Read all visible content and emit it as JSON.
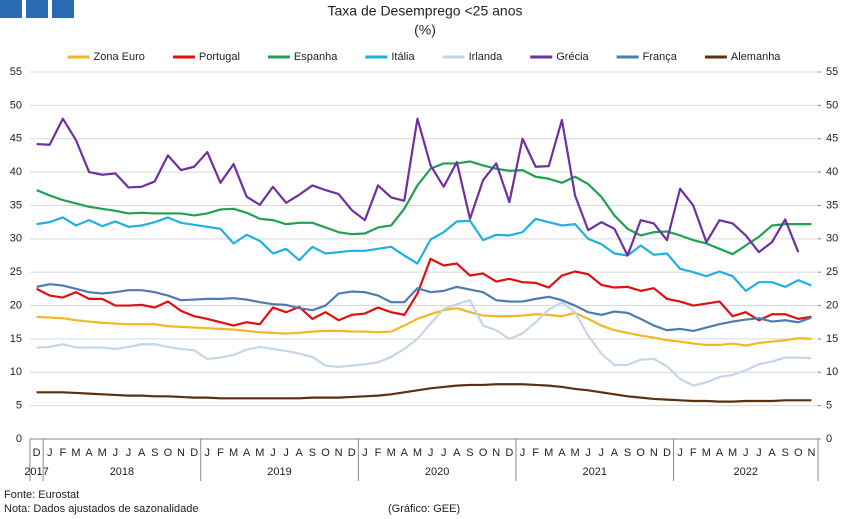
{
  "chart_data": {
    "type": "line",
    "title": "Taxa de Desemprego <25 anos",
    "subtitle": "(%)",
    "source": "Fonte: Eurostat",
    "note": "Nota: Dados ajustados de sazonalidade",
    "credit": "(Gráfico: GEE)",
    "categories": [
      "D",
      "J",
      "F",
      "M",
      "A",
      "M",
      "J",
      "J",
      "A",
      "S",
      "O",
      "N",
      "D",
      "J",
      "F",
      "M",
      "A",
      "M",
      "J",
      "J",
      "A",
      "S",
      "O",
      "N",
      "D",
      "J",
      "F",
      "M",
      "A",
      "M",
      "J",
      "J",
      "A",
      "S",
      "O",
      "N",
      "D",
      "J",
      "F",
      "M",
      "A",
      "M",
      "J",
      "J",
      "A",
      "S",
      "O",
      "N",
      "D",
      "J",
      "F",
      "M",
      "A",
      "M",
      "J",
      "J",
      "A",
      "S",
      "O",
      "N"
    ],
    "years": [
      "2017",
      "2018",
      "2019",
      "2020",
      "2021",
      "2022"
    ],
    "ylim": [
      0,
      55
    ],
    "yticks": [
      0,
      5,
      10,
      15,
      20,
      25,
      30,
      35,
      40,
      45,
      50,
      55
    ],
    "y2lim": [
      0,
      55
    ],
    "y2ticks": [
      0,
      5,
      10,
      15,
      20,
      25,
      30,
      35,
      40,
      45,
      50,
      55
    ],
    "grid": true,
    "legend": "top",
    "series": [
      {
        "name": "Zona Euro",
        "color": "#f2b821",
        "values": [
          18.3,
          18.2,
          18.1,
          17.8,
          17.6,
          17.4,
          17.3,
          17.2,
          17.2,
          17.2,
          16.9,
          16.8,
          16.7,
          16.6,
          16.5,
          16.4,
          16.2,
          16.0,
          15.9,
          15.8,
          15.9,
          16.1,
          16.2,
          16.2,
          16.1,
          16.1,
          16.0,
          16.1,
          17.0,
          18.0,
          18.7,
          19.3,
          19.6,
          19.0,
          18.5,
          18.4,
          18.4,
          18.5,
          18.7,
          18.6,
          18.4,
          18.9,
          18.0,
          17.0,
          16.3,
          15.9,
          15.5,
          15.2,
          14.8,
          14.6,
          14.3,
          14.1,
          14.1,
          14.3,
          14.0,
          14.4,
          14.6,
          14.8,
          15.1,
          15.0
        ]
      },
      {
        "name": "Portugal",
        "color": "#e01010",
        "values": [
          22.5,
          21.5,
          21.2,
          22.0,
          21.0,
          21.0,
          20.0,
          20.0,
          20.1,
          19.7,
          20.6,
          19.2,
          18.4,
          18.0,
          17.5,
          17.0,
          17.5,
          17.2,
          19.7,
          19.0,
          19.8,
          18.0,
          19.0,
          17.8,
          18.6,
          18.8,
          19.7,
          19.0,
          18.6,
          21.8,
          27.0,
          26.0,
          26.3,
          24.5,
          24.8,
          23.6,
          24.0,
          23.5,
          23.4,
          22.7,
          24.5,
          25.1,
          24.7,
          23.1,
          22.7,
          22.8,
          22.2,
          22.6,
          21.0,
          20.6,
          20.0,
          20.3,
          20.6,
          18.4,
          19.0,
          17.8,
          18.7,
          18.7,
          18.0,
          18.3
        ]
      },
      {
        "name": "Espanha",
        "color": "#20a050",
        "values": [
          37.3,
          36.5,
          35.8,
          35.3,
          34.8,
          34.5,
          34.2,
          33.8,
          33.9,
          33.8,
          33.8,
          33.8,
          33.5,
          33.8,
          34.4,
          34.5,
          33.9,
          33.0,
          32.8,
          32.2,
          32.4,
          32.4,
          31.7,
          31.0,
          30.7,
          30.8,
          31.7,
          32.0,
          34.5,
          38.0,
          40.5,
          41.3,
          41.3,
          41.6,
          41.0,
          40.5,
          40.2,
          40.3,
          39.3,
          39.0,
          38.4,
          39.3,
          38.2,
          36.3,
          33.5,
          31.5,
          30.5,
          31.0,
          31.1,
          30.5,
          29.8,
          29.3,
          28.5,
          27.7,
          29.0,
          30.3,
          32.0,
          32.2,
          32.2,
          32.2
        ]
      },
      {
        "name": "Itália",
        "color": "#20b0e0",
        "values": [
          32.2,
          32.5,
          33.2,
          32.0,
          32.8,
          31.9,
          32.6,
          31.8,
          32.0,
          32.5,
          33.2,
          32.4,
          32.1,
          31.8,
          31.5,
          29.3,
          30.6,
          29.7,
          27.8,
          28.5,
          26.8,
          28.8,
          27.8,
          28.0,
          28.2,
          28.2,
          28.5,
          28.8,
          27.5,
          26.3,
          29.9,
          31.0,
          32.6,
          32.7,
          29.8,
          30.6,
          30.5,
          31.0,
          33.0,
          32.5,
          32.0,
          32.2,
          30.0,
          29.2,
          27.8,
          27.5,
          29.0,
          27.6,
          27.8,
          25.5,
          25.0,
          24.4,
          25.1,
          24.4,
          22.2,
          23.5,
          23.5,
          22.8,
          23.8,
          23.0
        ]
      },
      {
        "name": "Irlanda",
        "color": "#c4d6e8",
        "values": [
          13.7,
          13.8,
          14.2,
          13.7,
          13.7,
          13.7,
          13.5,
          13.8,
          14.2,
          14.2,
          13.8,
          13.5,
          13.3,
          12.0,
          12.2,
          12.6,
          13.4,
          13.8,
          13.5,
          13.2,
          12.8,
          12.3,
          11.0,
          10.8,
          11.0,
          11.2,
          11.5,
          12.3,
          13.5,
          15.0,
          17.3,
          19.5,
          20.2,
          20.8,
          17.0,
          16.3,
          15.0,
          15.8,
          17.5,
          19.4,
          20.5,
          19.0,
          15.5,
          12.8,
          11.1,
          11.1,
          11.9,
          12.0,
          10.9,
          9.0,
          8.0,
          8.5,
          9.3,
          9.6,
          10.3,
          11.2,
          11.6,
          12.2,
          12.2,
          12.1
        ]
      },
      {
        "name": "Grécia",
        "color": "#7030a0",
        "values": [
          44.2,
          44.1,
          48.0,
          44.8,
          40.0,
          39.6,
          39.8,
          37.7,
          37.8,
          38.6,
          42.5,
          40.3,
          40.8,
          43.0,
          38.4,
          41.2,
          36.3,
          35.1,
          37.8,
          35.4,
          36.6,
          38.0,
          37.3,
          36.7,
          34.3,
          32.8,
          38.0,
          36.2,
          35.7,
          48.0,
          41.0,
          37.8,
          41.5,
          33.0,
          38.8,
          41.3,
          35.5,
          45.0,
          40.8,
          40.9,
          47.8,
          36.5,
          31.3,
          32.5,
          31.5,
          27.5,
          32.8,
          32.3,
          29.8,
          37.5,
          35.0,
          29.5,
          32.8,
          32.3,
          30.5,
          28.0,
          29.5,
          32.9,
          28.0,
          null
        ]
      },
      {
        "name": "França",
        "color": "#4f7cb0",
        "values": [
          22.8,
          23.2,
          23.0,
          22.5,
          22.0,
          21.8,
          22.0,
          22.3,
          22.3,
          22.0,
          21.5,
          20.8,
          20.9,
          21.0,
          21.0,
          21.1,
          20.9,
          20.5,
          20.2,
          20.1,
          19.6,
          19.3,
          20.0,
          21.8,
          22.1,
          22.0,
          21.5,
          20.5,
          20.5,
          22.6,
          22.0,
          22.2,
          22.8,
          22.4,
          22.0,
          20.8,
          20.6,
          20.6,
          21.0,
          21.3,
          20.8,
          20.0,
          19.0,
          18.6,
          19.1,
          18.9,
          18.0,
          17.0,
          16.3,
          16.5,
          16.2,
          16.7,
          17.2,
          17.6,
          17.9,
          18.1,
          17.6,
          17.8,
          17.5,
          18.2
        ]
      },
      {
        "name": "Alemanha",
        "color": "#5a3010",
        "values": [
          7.0,
          7.0,
          7.0,
          6.9,
          6.8,
          6.7,
          6.6,
          6.5,
          6.5,
          6.4,
          6.4,
          6.3,
          6.2,
          6.2,
          6.1,
          6.1,
          6.1,
          6.1,
          6.1,
          6.1,
          6.1,
          6.2,
          6.2,
          6.2,
          6.3,
          6.4,
          6.5,
          6.7,
          7.0,
          7.3,
          7.6,
          7.8,
          8.0,
          8.1,
          8.1,
          8.2,
          8.2,
          8.2,
          8.1,
          8.0,
          7.8,
          7.5,
          7.3,
          7.0,
          6.7,
          6.4,
          6.2,
          6.0,
          5.9,
          5.8,
          5.7,
          5.7,
          5.6,
          5.6,
          5.7,
          5.7,
          5.7,
          5.8,
          5.8,
          5.8
        ]
      }
    ]
  }
}
